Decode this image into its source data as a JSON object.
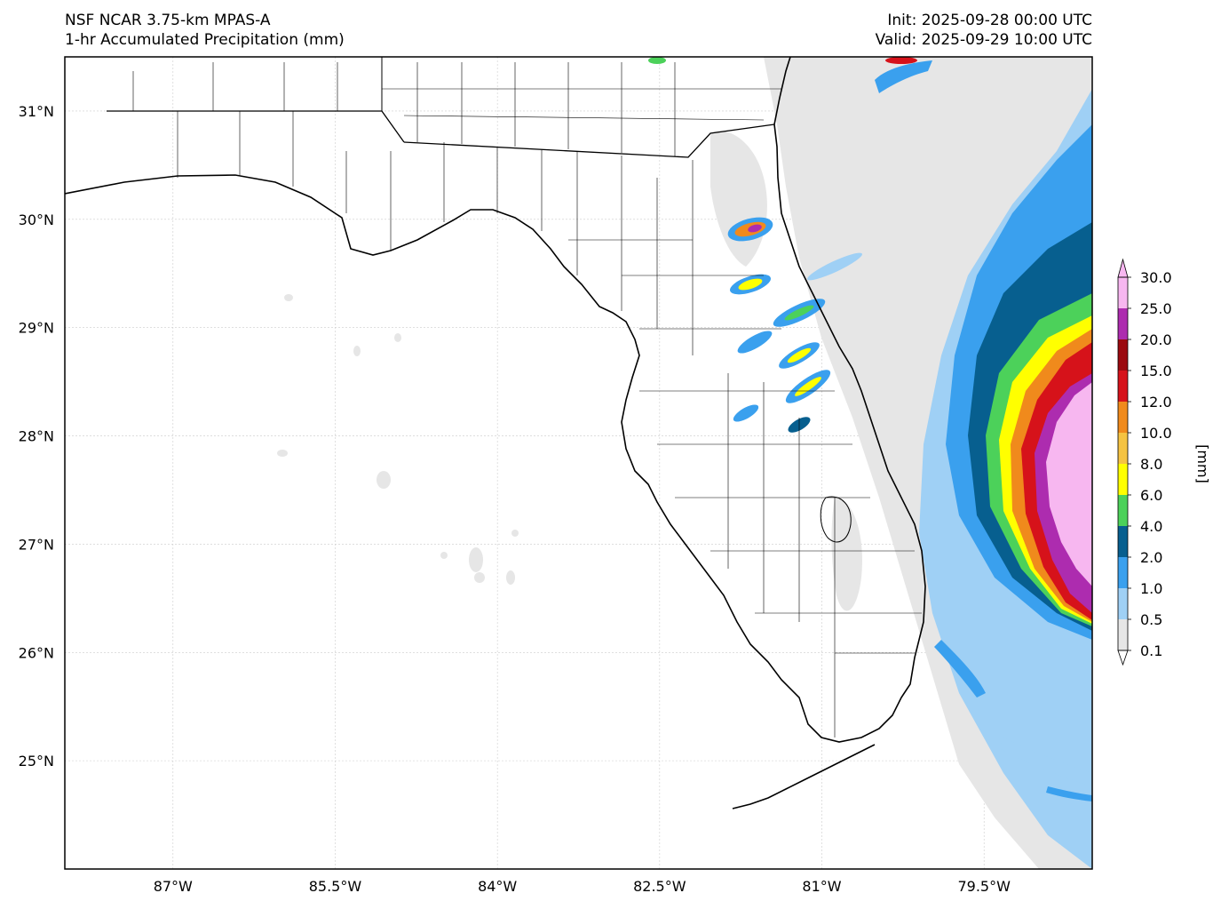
{
  "header": {
    "model": "NSF NCAR 3.75-km MPAS-A",
    "field": "1-hr Accumulated Precipitation (mm)",
    "init": "Init: 2025-09-28 00:00 UTC",
    "valid": "Valid: 2025-09-29 10:00 UTC"
  },
  "map": {
    "lon_range": [
      -88.0,
      -78.5
    ],
    "lat_range": [
      24.0,
      31.5
    ],
    "lat_ticks": [
      {
        "lat": 31,
        "label": "31°N"
      },
      {
        "lat": 30,
        "label": "30°N"
      },
      {
        "lat": 29,
        "label": "29°N"
      },
      {
        "lat": 28,
        "label": "28°N"
      },
      {
        "lat": 27,
        "label": "27°N"
      },
      {
        "lat": 26,
        "label": "26°N"
      },
      {
        "lat": 25,
        "label": "25°N"
      }
    ],
    "lon_ticks": [
      {
        "lon": -87.0,
        "label": "87°W"
      },
      {
        "lon": -85.5,
        "label": "85.5°W"
      },
      {
        "lon": -84.0,
        "label": "84°W"
      },
      {
        "lon": -82.5,
        "label": "82.5°W"
      },
      {
        "lon": -81.0,
        "label": "81°W"
      },
      {
        "lon": -79.5,
        "label": "79.5°W"
      }
    ],
    "gridlines": true,
    "precip_features": [
      {
        "lon": -81.68,
        "lat": 29.9,
        "max_mm": 25
      },
      {
        "lon": -81.85,
        "lat": 29.4,
        "max_mm": 8
      },
      {
        "lon": -81.3,
        "lat": 29.2,
        "max_mm": 6
      },
      {
        "lon": -81.2,
        "lat": 28.75,
        "max_mm": 6
      },
      {
        "lon": -81.1,
        "lat": 28.45,
        "max_mm": 8
      },
      {
        "lon": -80.5,
        "lat": 29.9,
        "max_mm": 0.5
      },
      {
        "lon": -78.6,
        "lat": 27.4,
        "max_mm": 30
      }
    ]
  },
  "colorbar": {
    "label": "[mm]",
    "levels": [
      "0.1",
      "0.5",
      "1.0",
      "2.0",
      "4.0",
      "6.0",
      "8.0",
      "10.0",
      "12.0",
      "15.0",
      "20.0",
      "25.0",
      "30.0"
    ],
    "colors": [
      "#e6e6e6",
      "#9fd0f5",
      "#3aa0ee",
      "#075f8f",
      "#4cd15a",
      "#ffff00",
      "#f5c342",
      "#f08a1c",
      "#d6121a",
      "#9b0a0f",
      "#ad2caf",
      "#f7b7f0"
    ]
  }
}
